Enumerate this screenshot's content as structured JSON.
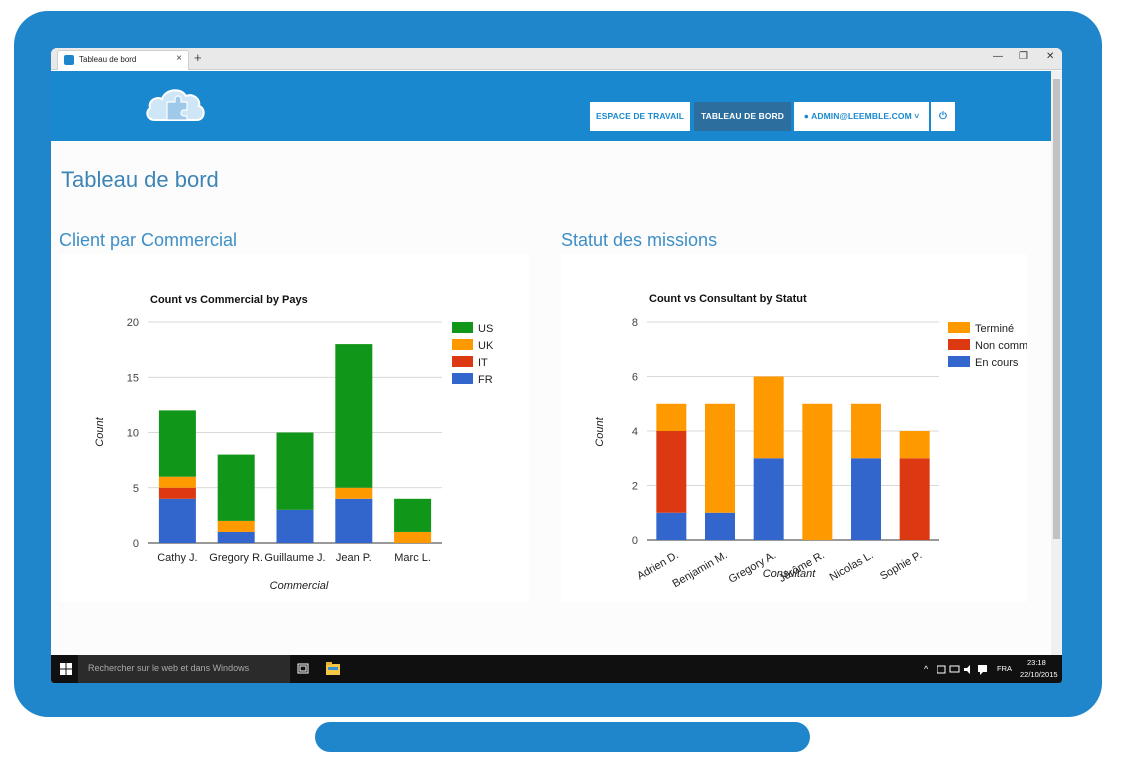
{
  "browser": {
    "tab_title": "Tableau de bord",
    "tab_close": "×",
    "new_tab": "+",
    "minimize": "—",
    "maximize": "❐",
    "close": "✕"
  },
  "nav": {
    "workspace": "ESPACE DE TRAVAIL",
    "dashboard": "TABLEAU DE BORD",
    "user": "ADMIN@LEEMBLE.COM",
    "power_icon": "power-icon",
    "user_icon": "user-icon"
  },
  "page": {
    "title": "Tableau de bord",
    "section_left": "Client par Commercial",
    "section_right": "Statut des missions"
  },
  "colors": {
    "blue": "#3366cc",
    "red": "#dc3912",
    "orange": "#ff9900",
    "green": "#109618",
    "header": "#1a88ce"
  },
  "chart_data": [
    {
      "type": "bar",
      "stacked": true,
      "title": "Count vs Commercial by Pays",
      "xlabel": "Commercial",
      "ylabel": "Count",
      "ylim": [
        0,
        20
      ],
      "yticks": [
        0,
        5,
        10,
        15,
        20
      ],
      "categories": [
        "Cathy J.",
        "Gregory R.",
        "Guillaume J.",
        "Jean P.",
        "Marc L."
      ],
      "series": [
        {
          "name": "FR",
          "color": "#3366cc",
          "values": [
            4,
            1,
            3,
            4,
            0
          ]
        },
        {
          "name": "IT",
          "color": "#dc3912",
          "values": [
            1,
            0,
            0,
            0,
            0
          ]
        },
        {
          "name": "UK",
          "color": "#ff9900",
          "values": [
            1,
            1,
            0,
            1,
            1
          ]
        },
        {
          "name": "US",
          "color": "#109618",
          "values": [
            6,
            6,
            7,
            13,
            3
          ]
        }
      ],
      "legend": [
        "US",
        "UK",
        "IT",
        "FR"
      ],
      "legend_colors": [
        "#109618",
        "#ff9900",
        "#dc3912",
        "#3366cc"
      ],
      "legend_position": "right",
      "grid": true
    },
    {
      "type": "bar",
      "stacked": true,
      "title": "Count vs Consultant by Statut",
      "xlabel": "Consultant",
      "ylabel": "Count",
      "ylim": [
        0,
        8
      ],
      "yticks": [
        0,
        2,
        4,
        6,
        8
      ],
      "categories": [
        "Adrien D.",
        "Benjamin M.",
        "Gregory A.",
        "Jérôme R.",
        "Nicolas L.",
        "Sophie P."
      ],
      "series": [
        {
          "name": "En cours",
          "color": "#3366cc",
          "values": [
            1,
            1,
            3,
            0,
            3,
            0
          ]
        },
        {
          "name": "Non comm",
          "color": "#dc3912",
          "values": [
            3,
            0,
            0,
            0,
            0,
            3
          ]
        },
        {
          "name": "Terminé",
          "color": "#ff9900",
          "values": [
            1,
            4,
            3,
            5,
            2,
            1
          ]
        }
      ],
      "legend": [
        "Terminé",
        "Non comm",
        "En cours"
      ],
      "legend_colors": [
        "#ff9900",
        "#dc3912",
        "#3366cc"
      ],
      "legend_position": "right",
      "grid": true
    }
  ],
  "taskbar": {
    "search_placeholder": "Rechercher sur le web et dans Windows",
    "language": "FRA",
    "time": "23:18",
    "date": "22/10/2015",
    "tray_up": "^"
  }
}
